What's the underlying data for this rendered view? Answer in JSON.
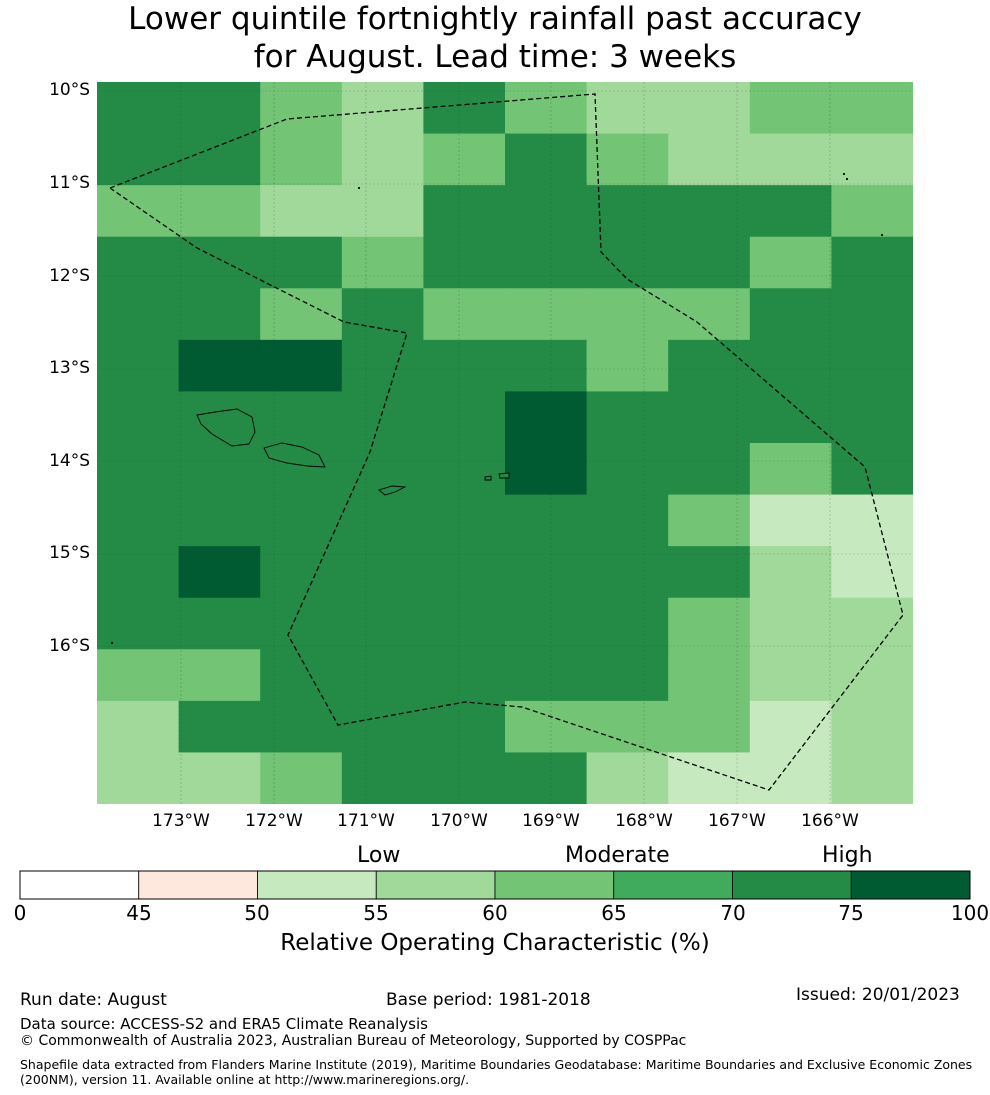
{
  "title_line1": "Lower quintile fortnightly rainfall past accuracy",
  "title_line2": "for August. Lead time: 3 weeks",
  "lat_labels": [
    "10°S",
    "11°S",
    "12°S",
    "13°S",
    "14°S",
    "15°S",
    "16°S"
  ],
  "lon_labels": [
    "173°W",
    "172°W",
    "171°W",
    "170°W",
    "169°W",
    "168°W",
    "167°W",
    "166°W"
  ],
  "colorbar": {
    "title": "Relative Operating Characteristic (%)",
    "category_labels": [
      "Low",
      "Moderate",
      "High"
    ],
    "ticks": [
      "0",
      "45",
      "50",
      "55",
      "60",
      "65",
      "70",
      "75",
      "100"
    ],
    "colors": [
      "#ffffff",
      "#fee8de",
      "#c7e9c0",
      "#a1d99b",
      "#74c476",
      "#41ab5d",
      "#238b45",
      "#005a32"
    ]
  },
  "grid_values": [
    [
      70,
      70,
      62,
      57,
      70,
      62,
      57,
      57,
      62,
      62
    ],
    [
      70,
      70,
      62,
      57,
      62,
      70,
      62,
      57,
      57,
      57
    ],
    [
      62,
      62,
      57,
      57,
      70,
      70,
      70,
      70,
      70,
      62
    ],
    [
      70,
      70,
      70,
      62,
      70,
      72,
      70,
      72,
      62,
      70
    ],
    [
      70,
      70,
      62,
      70,
      62,
      62,
      62,
      62,
      70,
      70
    ],
    [
      72,
      77,
      77,
      72,
      72,
      70,
      62,
      70,
      72,
      72
    ],
    [
      72,
      72,
      72,
      72,
      72,
      77,
      70,
      70,
      72,
      70
    ],
    [
      72,
      72,
      72,
      72,
      72,
      77,
      70,
      72,
      62,
      70
    ],
    [
      72,
      72,
      70,
      72,
      72,
      70,
      72,
      62,
      52,
      52
    ],
    [
      70,
      77,
      72,
      70,
      72,
      70,
      70,
      70,
      57,
      52
    ],
    [
      70,
      72,
      70,
      72,
      72,
      70,
      70,
      62,
      57,
      57
    ],
    [
      62,
      62,
      70,
      72,
      72,
      72,
      72,
      62,
      57,
      57
    ],
    [
      57,
      70,
      70,
      70,
      70,
      62,
      62,
      62,
      52,
      57
    ],
    [
      57,
      57,
      62,
      70,
      70,
      70,
      57,
      52,
      52,
      57
    ]
  ],
  "footer": {
    "run_date": "Run date: August",
    "base_period": "Base period: 1981-2018",
    "issued": "Issued: 20/01/2023",
    "data_source": "Data source: ACCESS-S2 and ERA5 Climate Reanalysis",
    "copyright": "© Commonwealth of Australia 2023, Australian Bureau of Meteorology, Supported by COSPPac",
    "shapefile_line1": "Shapefile data extracted from Flanders Marine Institute (2019), Maritime Boundaries Geodatabase: Maritime Boundaries and Exclusive Economic Zones",
    "shapefile_line2": "(200NM), version 11. Available online at http://www.marineregions.org/."
  }
}
